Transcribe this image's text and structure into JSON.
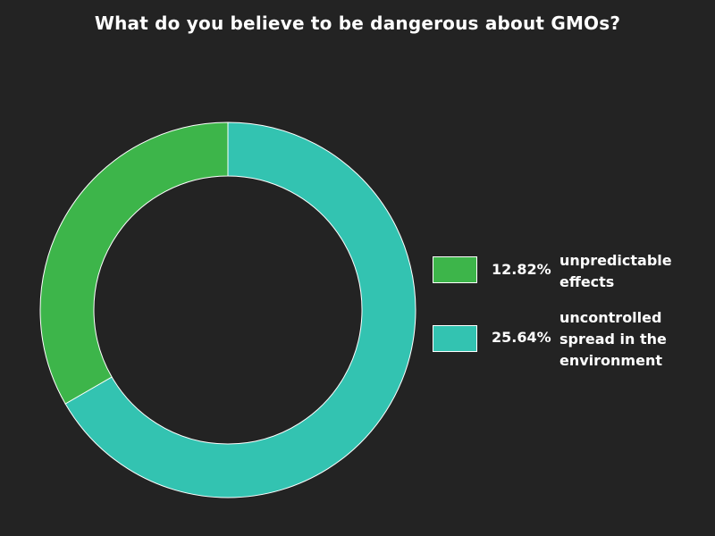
{
  "chart_data": {
    "type": "pie",
    "variant": "donut",
    "title": "What do you believe to be dangerous about GMOs?",
    "categories": [
      "unpredictable effects",
      "uncontrolled spread in the environment"
    ],
    "values": [
      12.82,
      25.64
    ],
    "value_labels": [
      "12.82%",
      "25.64%"
    ],
    "colors": [
      "#3db54a",
      "#33c3b1"
    ],
    "legend_position": "right"
  }
}
